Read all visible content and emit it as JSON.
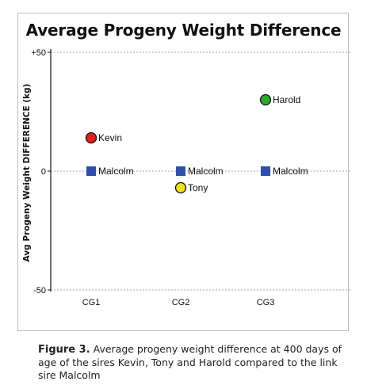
{
  "chart_data": {
    "type": "scatter",
    "title": "Average Progeny Weight Difference",
    "ylabel": "Avg Progeny Weight DIFFERENCE (kg)",
    "xlabel": "",
    "categories": [
      "CG1",
      "CG2",
      "CG3"
    ],
    "ylim": [
      -50,
      50
    ],
    "yticks": [
      "+50",
      "0",
      "-50"
    ],
    "grid": "dashed horizontal at ticks",
    "points": [
      {
        "label": "Kevin",
        "category": "CG1",
        "y": 14,
        "marker": "circle",
        "color": "#e02020"
      },
      {
        "label": "Malcolm",
        "category": "CG1",
        "y": 0,
        "marker": "square",
        "color": "#2f4fa8"
      },
      {
        "label": "Malcolm",
        "category": "CG2",
        "y": 0,
        "marker": "square",
        "color": "#2f4fa8"
      },
      {
        "label": "Tony",
        "category": "CG2",
        "y": -7,
        "marker": "circle",
        "color": "#f0e020"
      },
      {
        "label": "Harold",
        "category": "CG3",
        "y": 30,
        "marker": "circle",
        "color": "#2ea82e"
      },
      {
        "label": "Malcolm",
        "category": "CG3",
        "y": 0,
        "marker": "square",
        "color": "#2f4fa8"
      }
    ]
  },
  "caption": {
    "label": "Figure 3.",
    "text": "Average progeny weight difference at 400 days of age of the sires Kevin, Tony and Harold compared to the link sire Malcolm"
  }
}
